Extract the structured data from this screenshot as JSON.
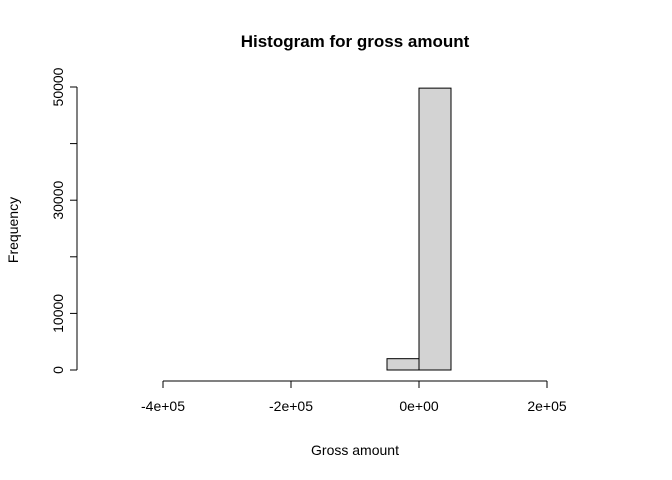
{
  "chart_data": {
    "type": "bar",
    "title": "Histogram for gross amount",
    "xlabel": "Gross amount",
    "ylabel": "Frequency",
    "xlim": [
      -500000,
      300000
    ],
    "ylim": [
      0,
      50000
    ],
    "x_ticks": [
      -400000,
      -200000,
      0,
      200000
    ],
    "x_tick_labels": [
      "-4e+05",
      "-2e+05",
      "0e+00",
      "2e+05"
    ],
    "y_ticks": [
      0,
      10000,
      30000,
      50000
    ],
    "y_tick_labels": [
      "0",
      "10000",
      "30000",
      "50000"
    ],
    "bins": [
      {
        "start": -500000,
        "end": -450000,
        "count": 0
      },
      {
        "start": -450000,
        "end": -400000,
        "count": 0
      },
      {
        "start": -400000,
        "end": -350000,
        "count": 0
      },
      {
        "start": -350000,
        "end": -300000,
        "count": 0
      },
      {
        "start": -300000,
        "end": -250000,
        "count": 0
      },
      {
        "start": -250000,
        "end": -200000,
        "count": 0
      },
      {
        "start": -200000,
        "end": -150000,
        "count": 0
      },
      {
        "start": -150000,
        "end": -100000,
        "count": 0
      },
      {
        "start": -100000,
        "end": -50000,
        "count": 0
      },
      {
        "start": -50000,
        "end": 0,
        "count": 2000
      },
      {
        "start": 0,
        "end": 50000,
        "count": 49800
      },
      {
        "start": 50000,
        "end": 100000,
        "count": 0
      },
      {
        "start": 100000,
        "end": 150000,
        "count": 0
      },
      {
        "start": 150000,
        "end": 200000,
        "count": 0
      },
      {
        "start": 200000,
        "end": 250000,
        "count": 0
      },
      {
        "start": 250000,
        "end": 300000,
        "count": 0
      }
    ],
    "grid": false,
    "legend": "none",
    "bar_color": "#d3d3d3"
  }
}
